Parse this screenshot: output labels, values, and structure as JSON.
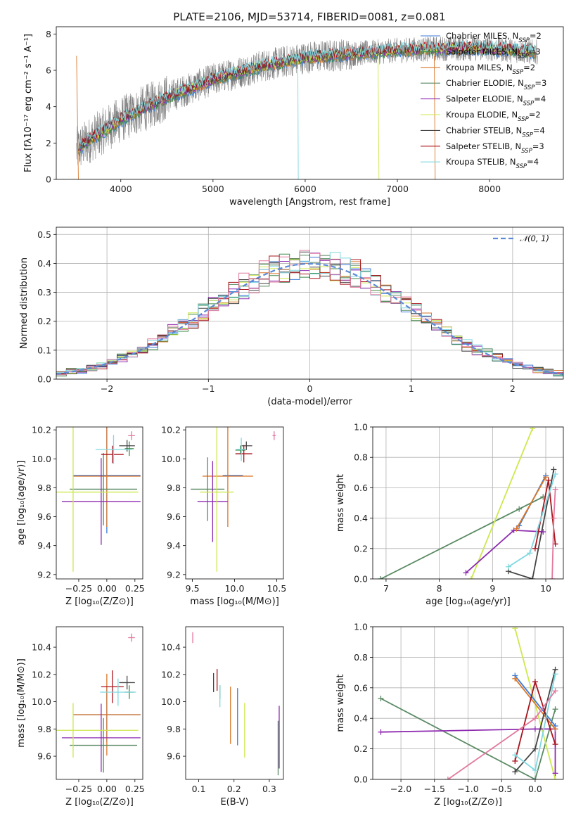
{
  "figure": {
    "title": "PLATE=2106, MJD=53714, FIBERID=0081, z=0.081"
  },
  "chart_data": [
    {
      "id": "spectrum",
      "type": "line",
      "xlabel": "wavelength [Angstrom, rest frame]",
      "ylabel": "Flux [fλ10⁻¹⁷ erg cm⁻² s⁻¹ A⁻¹]",
      "xlim": [
        3300,
        8800
      ],
      "ylim": [
        0,
        8.4
      ],
      "xticks": [
        4000,
        5000,
        6000,
        7000,
        8000
      ],
      "yticks": [
        0,
        2,
        4,
        6,
        8
      ],
      "data_x_range": [
        3520,
        8520
      ],
      "data_trend": {
        "x": [
          3520,
          3700,
          4000,
          4500,
          5000,
          5500,
          6000,
          6500,
          7000,
          7500,
          8000,
          8500
        ],
        "y": [
          1.6,
          2.3,
          3.3,
          4.5,
          5.5,
          6.2,
          6.7,
          6.9,
          7.1,
          7.2,
          7.2,
          7.0
        ]
      },
      "series": [
        {
          "name": "Chabrier MILES, N",
          "sub": "SSP",
          "suffix": "=2",
          "color": "#3a7ad6"
        },
        {
          "name": "Salpeter MILES, N",
          "sub": "SSP",
          "suffix": "=3",
          "color": "#3e8a4a"
        },
        {
          "name": "Kroupa MILES, N",
          "sub": "SSP",
          "suffix": "=2",
          "color": "#d9772b"
        },
        {
          "name": "Chabrier ELODIE, N",
          "sub": "SSP",
          "suffix": "=3",
          "color": "#5a8a64"
        },
        {
          "name": "Salpeter ELODIE, N",
          "sub": "SSP",
          "suffix": "=4",
          "color": "#8e2bb0"
        },
        {
          "name": "Kroupa ELODIE, N",
          "sub": "SSP",
          "suffix": "=2",
          "color": "#cde84e"
        },
        {
          "name": "Chabrier STELIB, N",
          "sub": "SSP",
          "suffix": "=4",
          "color": "#444444"
        },
        {
          "name": "Salpeter STELIB, N",
          "sub": "SSP",
          "suffix": "=3",
          "color": "#a8141c"
        },
        {
          "name": "Kroupa STELIB, N",
          "sub": "SSP",
          "suffix": "=4",
          "color": "#7fd8e0"
        }
      ]
    },
    {
      "id": "residuals",
      "type": "histogram",
      "xlabel": "(data-model)/error",
      "ylabel": "Normed distribution",
      "xlim": [
        -2.5,
        2.5
      ],
      "ylim": [
        0,
        0.525
      ],
      "xticks": [
        -2,
        -1,
        0,
        1,
        2
      ],
      "yticks": [
        0.0,
        0.1,
        0.2,
        0.3,
        0.4,
        0.5
      ],
      "legend": "𝒩(0, 1)",
      "bin_edges_start": -2.5,
      "bin_width": 0.1,
      "grid": true
    },
    {
      "id": "age_vs_Z",
      "type": "errorbar",
      "xlabel": "Z [log₁₀(Z/Z⊙)]",
      "ylabel": "age  [log₁₀(age/yr)]",
      "xlim": [
        -0.45,
        0.32
      ],
      "ylim": [
        9.17,
        10.22
      ],
      "xticks": [
        -0.25,
        0.0,
        0.25
      ],
      "yticks": [
        9.2,
        9.4,
        9.6,
        9.8,
        10.0,
        10.2
      ],
      "points": [
        {
          "x": 0.0,
          "y": 9.885,
          "xerr": 0.3,
          "yerr": 0.4,
          "color": "#3a7ad6"
        },
        {
          "x": 0.0,
          "y": 9.88,
          "xerr": 0.3,
          "yerr": 0.35,
          "color": "#d9772b"
        },
        {
          "x": -0.03,
          "y": 9.79,
          "xerr": 0.3,
          "yerr": 0.25,
          "color": "#5a8a64"
        },
        {
          "x": -0.05,
          "y": 9.705,
          "xerr": 0.35,
          "yerr": 0.3,
          "color": "#8e2bb0"
        },
        {
          "x": -0.3,
          "y": 9.77,
          "xerr": 0.58,
          "yerr": 0.55,
          "color": "#cde84e"
        },
        {
          "x": 0.2,
          "y": 10.07,
          "xerr": 0.04,
          "yerr": 0.05,
          "color": "#3e8a4a"
        },
        {
          "x": 0.22,
          "y": 10.16,
          "xerr": 0.03,
          "yerr": 0.03,
          "color": "#e2789e"
        },
        {
          "x": 0.18,
          "y": 10.09,
          "xerr": 0.07,
          "yerr": 0.04,
          "color": "#444444"
        },
        {
          "x": 0.05,
          "y": 10.03,
          "xerr": 0.1,
          "yerr": 0.06,
          "color": "#a8141c"
        },
        {
          "x": 0.06,
          "y": 10.065,
          "xerr": 0.16,
          "yerr": 0.1,
          "color": "#7fd8e0"
        }
      ]
    },
    {
      "id": "age_vs_mass",
      "type": "errorbar",
      "xlabel": "mass [log₁₀(M/M⊙)]",
      "ylabel": "",
      "xlim": [
        9.42,
        10.58
      ],
      "ylim": [
        9.17,
        10.22
      ],
      "xticks": [
        9.5,
        10.0,
        10.5
      ],
      "yticks": [
        9.2,
        9.4,
        9.6,
        9.8,
        10.0,
        10.2
      ],
      "points": [
        {
          "x": 9.98,
          "y": 9.885,
          "xerr": 0.12,
          "yerr": 0.0,
          "color": "#3a7ad6"
        },
        {
          "x": 9.92,
          "y": 9.88,
          "xerr": 0.3,
          "yerr": 0.35,
          "color": "#d9772b"
        },
        {
          "x": 9.68,
          "y": 9.79,
          "xerr": 0.2,
          "yerr": 0.22,
          "color": "#5a8a64"
        },
        {
          "x": 9.74,
          "y": 9.705,
          "xerr": 0.18,
          "yerr": 0.28,
          "color": "#8e2bb0"
        },
        {
          "x": 9.79,
          "y": 9.77,
          "xerr": 0.2,
          "yerr": 0.55,
          "color": "#cde84e"
        },
        {
          "x": 10.07,
          "y": 10.06,
          "xerr": 0.06,
          "yerr": 0.03,
          "color": "#3e8a4a"
        },
        {
          "x": 10.47,
          "y": 10.16,
          "xerr": 0.02,
          "yerr": 0.03,
          "color": "#e2789e"
        },
        {
          "x": 10.14,
          "y": 10.09,
          "xerr": 0.07,
          "yerr": 0.03,
          "color": "#444444"
        },
        {
          "x": 10.11,
          "y": 10.035,
          "xerr": 0.1,
          "yerr": 0.06,
          "color": "#a8141c"
        },
        {
          "x": 10.08,
          "y": 10.065,
          "xerr": 0.06,
          "yerr": 0.08,
          "color": "#7fd8e0"
        }
      ]
    },
    {
      "id": "weight_vs_age",
      "type": "line",
      "xlabel": "age  [log₁₀(age/yr)]",
      "ylabel": "mass weight",
      "xlim": [
        6.75,
        10.33
      ],
      "ylim": [
        0,
        1.0
      ],
      "xticks": [
        7,
        8,
        9,
        10
      ],
      "yticks": [
        0.0,
        0.2,
        0.4,
        0.6,
        0.8,
        1.0
      ],
      "series": [
        {
          "color": "#5a8a64",
          "x": [
            6.9,
            9.5,
            9.95
          ],
          "y": [
            0.0,
            0.46,
            0.54
          ]
        },
        {
          "color": "#cde84e",
          "x": [
            8.6,
            9.75
          ],
          "y": [
            0.0,
            0.99
          ]
        },
        {
          "color": "#8e2bb0",
          "x": [
            8.5,
            9.4,
            9.95
          ],
          "y": [
            0.04,
            0.32,
            0.31
          ]
        },
        {
          "color": "#3a7ad6",
          "x": [
            9.5,
            10.0
          ],
          "y": [
            0.35,
            0.68
          ]
        },
        {
          "color": "#d9772b",
          "x": [
            9.45,
            10.0
          ],
          "y": [
            0.33,
            0.67
          ]
        },
        {
          "color": "#444444",
          "x": [
            9.3,
            9.75,
            10.15
          ],
          "y": [
            0.05,
            0.0,
            0.72
          ]
        },
        {
          "color": "#a8141c",
          "x": [
            9.8,
            10.05,
            10.18
          ],
          "y": [
            0.2,
            0.65,
            0.23
          ]
        },
        {
          "color": "#7fd8e0",
          "x": [
            9.3,
            9.7,
            10.18
          ],
          "y": [
            0.08,
            0.17,
            0.69
          ]
        },
        {
          "color": "#e2789e",
          "x": [
            10.12,
            10.15,
            10.18
          ],
          "y": [
            0.0,
            0.4,
            0.59
          ]
        }
      ]
    },
    {
      "id": "mass_vs_Z",
      "type": "errorbar",
      "xlabel": "Z [log₁₀(Z/Z⊙)]",
      "ylabel": "mass [log₁₀(M/M⊙)]",
      "xlim": [
        -0.45,
        0.32
      ],
      "ylim": [
        9.43,
        10.55
      ],
      "xticks": [
        -0.25,
        0.0,
        0.25
      ],
      "yticks": [
        9.6,
        9.8,
        10.0,
        10.2,
        10.4
      ],
      "points": [
        {
          "x": 0.0,
          "y": 9.905,
          "xerr": 0.3,
          "yerr": 0.2,
          "color": "#3a7ad6"
        },
        {
          "x": 0.0,
          "y": 9.905,
          "xerr": 0.3,
          "yerr": 0.3,
          "color": "#d9772b"
        },
        {
          "x": -0.03,
          "y": 9.68,
          "xerr": 0.3,
          "yerr": 0.2,
          "color": "#5a8a64"
        },
        {
          "x": -0.05,
          "y": 9.735,
          "xerr": 0.35,
          "yerr": 0.25,
          "color": "#8e2bb0"
        },
        {
          "x": -0.3,
          "y": 9.79,
          "xerr": 0.58,
          "yerr": 0.2,
          "color": "#cde84e"
        },
        {
          "x": 0.2,
          "y": 10.07,
          "xerr": 0.04,
          "yerr": 0.05,
          "color": "#3e8a4a"
        },
        {
          "x": 0.22,
          "y": 10.47,
          "xerr": 0.03,
          "yerr": 0.03,
          "color": "#e2789e"
        },
        {
          "x": 0.18,
          "y": 10.14,
          "xerr": 0.07,
          "yerr": 0.05,
          "color": "#444444"
        },
        {
          "x": 0.05,
          "y": 10.11,
          "xerr": 0.1,
          "yerr": 0.12,
          "color": "#a8141c"
        },
        {
          "x": 0.1,
          "y": 10.07,
          "xerr": 0.16,
          "yerr": 0.1,
          "color": "#7fd8e0"
        }
      ]
    },
    {
      "id": "mass_vs_EBV",
      "type": "errorbar",
      "xlabel": "E(B-V)",
      "ylabel": "",
      "xlim": [
        0.063,
        0.34
      ],
      "ylim": [
        9.43,
        10.55
      ],
      "xticks": [
        0.1,
        0.2,
        0.3
      ],
      "yticks": [
        9.6,
        9.8,
        10.0,
        10.2,
        10.4
      ],
      "points": [
        {
          "x": 0.21,
          "y": 9.89,
          "xerr": 0.0,
          "yerr": 0.21,
          "color": "#3a7ad6"
        },
        {
          "x": 0.19,
          "y": 9.9,
          "xerr": 0.0,
          "yerr": 0.21,
          "color": "#d9772b"
        },
        {
          "x": 0.325,
          "y": 9.66,
          "xerr": 0.0,
          "yerr": 0.2,
          "color": "#5a8a64"
        },
        {
          "x": 0.328,
          "y": 9.74,
          "xerr": 0.0,
          "yerr": 0.23,
          "color": "#8e2bb0"
        },
        {
          "x": 0.23,
          "y": 9.79,
          "xerr": 0.0,
          "yerr": 0.2,
          "color": "#cde84e"
        },
        {
          "x": 0.16,
          "y": 10.07,
          "xerr": 0.0,
          "yerr": 0.05,
          "color": "#3e8a4a"
        },
        {
          "x": 0.083,
          "y": 10.47,
          "xerr": 0.0,
          "yerr": 0.04,
          "color": "#e2789e"
        },
        {
          "x": 0.142,
          "y": 10.14,
          "xerr": 0.0,
          "yerr": 0.07,
          "color": "#444444"
        },
        {
          "x": 0.152,
          "y": 10.16,
          "xerr": 0.0,
          "yerr": 0.08,
          "color": "#a8141c"
        },
        {
          "x": 0.16,
          "y": 10.04,
          "xerr": 0.0,
          "yerr": 0.08,
          "color": "#7fd8e0"
        }
      ]
    },
    {
      "id": "weight_vs_Z",
      "type": "line",
      "xlabel": "Z [log₁₀(Z/Z⊙)]",
      "ylabel": "mass weight",
      "xlim": [
        -2.42,
        0.42
      ],
      "ylim": [
        0,
        1.0
      ],
      "xticks": [
        -2.0,
        -1.5,
        -1.0,
        -0.5,
        0.0
      ],
      "yticks": [
        0.0,
        0.2,
        0.4,
        0.6,
        0.8,
        1.0
      ],
      "series": [
        {
          "color": "#5a8a64",
          "x": [
            -2.3,
            0.0,
            0.3
          ],
          "y": [
            0.53,
            0.0,
            0.46
          ]
        },
        {
          "color": "#cde84e",
          "x": [
            -0.3,
            0.3
          ],
          "y": [
            0.99,
            0.0
          ]
        },
        {
          "color": "#8e2bb0",
          "x": [
            -2.3,
            0.0,
            0.3,
            0.3
          ],
          "y": [
            0.31,
            0.33,
            0.33,
            0.04
          ]
        },
        {
          "color": "#3a7ad6",
          "x": [
            -0.3,
            0.3
          ],
          "y": [
            0.68,
            0.35
          ]
        },
        {
          "color": "#d9772b",
          "x": [
            -0.3,
            0.3
          ],
          "y": [
            0.66,
            0.33
          ]
        },
        {
          "color": "#444444",
          "x": [
            -0.3,
            0.0,
            0.3
          ],
          "y": [
            0.05,
            0.2,
            0.72
          ]
        },
        {
          "color": "#a8141c",
          "x": [
            -0.3,
            0.0,
            0.3
          ],
          "y": [
            0.12,
            0.64,
            0.23
          ]
        },
        {
          "color": "#7fd8e0",
          "x": [
            -0.3,
            0.0,
            0.3
          ],
          "y": [
            0.16,
            0.06,
            0.69
          ]
        },
        {
          "color": "#e2789e",
          "x": [
            -1.3,
            0.0,
            0.3
          ],
          "y": [
            0.0,
            0.4,
            0.58
          ]
        }
      ]
    }
  ]
}
